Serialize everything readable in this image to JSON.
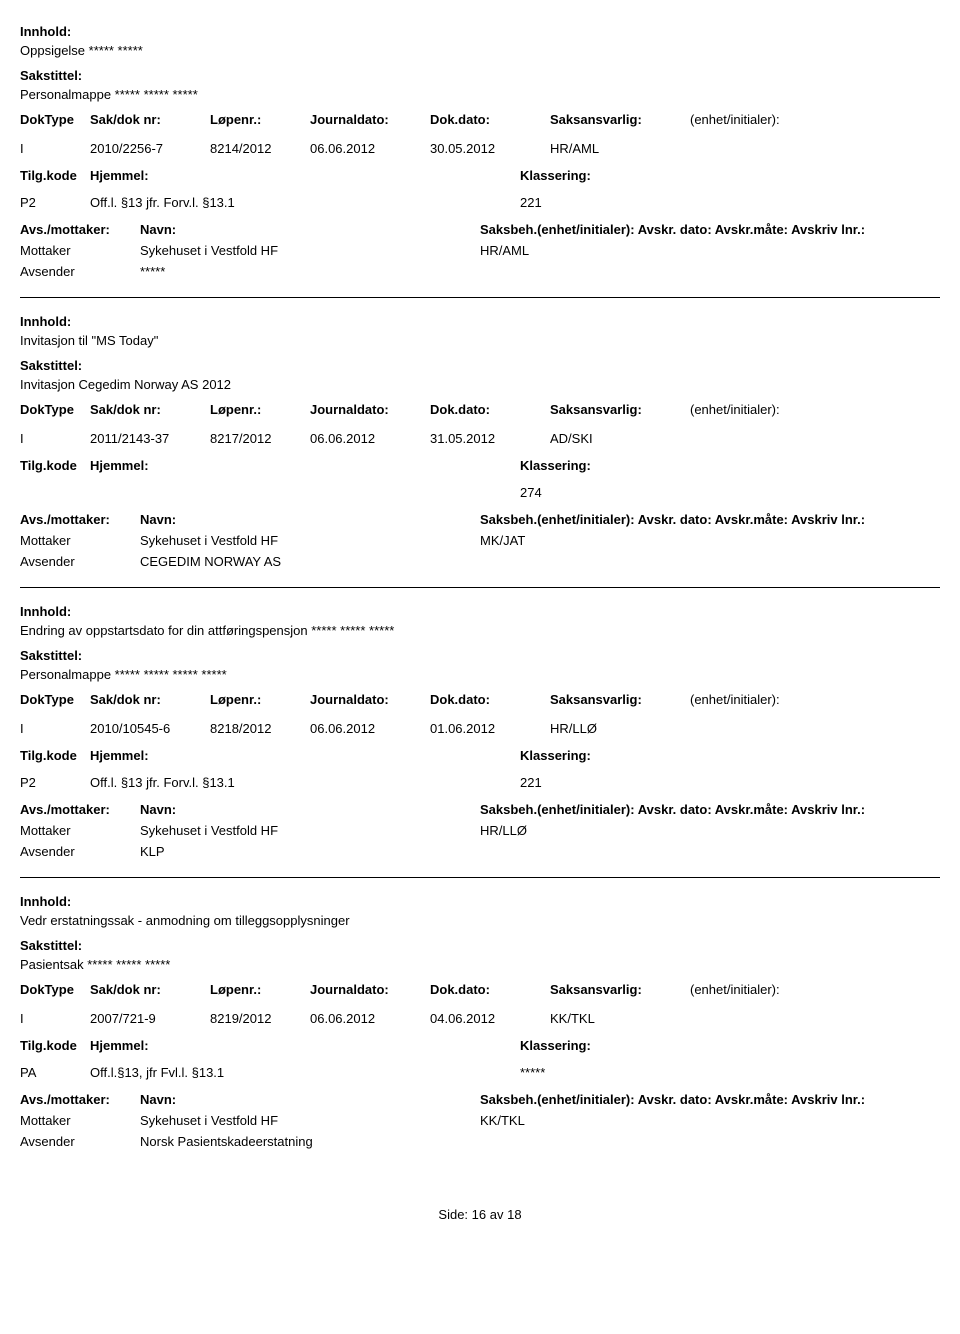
{
  "labels": {
    "innhold": "Innhold:",
    "sakstittel": "Sakstittel:",
    "doktype": "DokType",
    "sakdoknr": "Sak/dok nr:",
    "lopenr": "Løpenr.:",
    "journaldato": "Journaldato:",
    "dokdato": "Dok.dato:",
    "saksansvarlig": "Saksansvarlig:",
    "enhet_initialer": "(enhet/initialer):",
    "tilgkode": "Tilg.kode",
    "hjemmel": "Hjemmel:",
    "klassering": "Klassering:",
    "avs_mottaker": "Avs./mottaker:",
    "navn": "Navn:",
    "saksbeh_line": "Saksbeh.(enhet/initialer): Avskr. dato: Avskr.måte: Avskriv lnr.:",
    "mottaker": "Mottaker",
    "avsender": "Avsender",
    "side": "Side:",
    "av": "av"
  },
  "entries": [
    {
      "innhold": "Oppsigelse ***** *****",
      "sakstittel": "Personalmappe ***** ***** *****",
      "doktype": "I",
      "sakdoknr": "2010/2256-7",
      "lopenr": "8214/2012",
      "journaldato": "06.06.2012",
      "dokdato": "30.05.2012",
      "saksansvarlig": "HR/AML",
      "tilgkode": "P2",
      "hjemmel": "Off.l. §13 jfr. Forv.l. §13.1",
      "klassering": "221",
      "mottaker_navn": "Sykehuset i Vestfold HF",
      "mottaker_init": "HR/AML",
      "avsender_navn": "*****"
    },
    {
      "innhold": "Invitasjon til \"MS Today\"",
      "sakstittel": "Invitasjon Cegedim Norway AS 2012",
      "doktype": "I",
      "sakdoknr": "2011/2143-37",
      "lopenr": "8217/2012",
      "journaldato": "06.06.2012",
      "dokdato": "31.05.2012",
      "saksansvarlig": "AD/SKI",
      "tilgkode": "",
      "hjemmel": "",
      "klassering": "274",
      "mottaker_navn": "Sykehuset i Vestfold HF",
      "mottaker_init": "MK/JAT",
      "avsender_navn": "CEGEDIM NORWAY AS"
    },
    {
      "innhold": "Endring av oppstartsdato for din attføringspensjon ***** ***** *****",
      "sakstittel": "Personalmappe ***** ***** ***** *****",
      "doktype": "I",
      "sakdoknr": "2010/10545-6",
      "lopenr": "8218/2012",
      "journaldato": "06.06.2012",
      "dokdato": "01.06.2012",
      "saksansvarlig": "HR/LLØ",
      "tilgkode": "P2",
      "hjemmel": "Off.l. §13 jfr. Forv.l. §13.1",
      "klassering": "221",
      "mottaker_navn": "Sykehuset i Vestfold HF",
      "mottaker_init": "HR/LLØ",
      "avsender_navn": "KLP"
    },
    {
      "innhold": "Vedr erstatningssak -  anmodning om tilleggsopplysninger",
      "sakstittel": "Pasientsak ***** ***** *****",
      "doktype": "I",
      "sakdoknr": "2007/721-9",
      "lopenr": "8219/2012",
      "journaldato": "06.06.2012",
      "dokdato": "04.06.2012",
      "saksansvarlig": "KK/TKL",
      "tilgkode": "PA",
      "hjemmel": "Off.l.§13, jfr Fvl.l. §13.1",
      "klassering": "*****",
      "mottaker_navn": "Sykehuset i Vestfold HF",
      "mottaker_init": "KK/TKL",
      "avsender_navn": "Norsk Pasientskadeerstatning"
    }
  ],
  "footer": {
    "page": "16",
    "total": "18"
  }
}
